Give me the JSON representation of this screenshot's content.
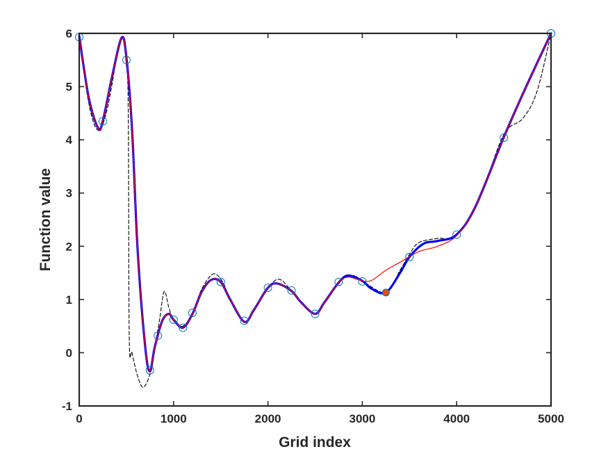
{
  "chart_data": {
    "type": "line",
    "title": "",
    "xlabel": "Grid index",
    "ylabel": "Function value",
    "xlim": [
      0,
      5000
    ],
    "ylim": [
      -1,
      6
    ],
    "xticks": [
      0,
      1000,
      2000,
      3000,
      4000,
      5000
    ],
    "yticks": [
      -1,
      0,
      1,
      2,
      3,
      4,
      5,
      6
    ],
    "xtick_labels": [
      "0",
      "1000",
      "2000",
      "3000",
      "4000",
      "5000"
    ],
    "ytick_labels": [
      "-1",
      "0",
      "1",
      "2",
      "3",
      "4",
      "5",
      "6"
    ],
    "grid": false,
    "legend": "none",
    "series": [
      {
        "style": "solid-red-thin",
        "color": "#ff0000",
        "x": [
          0,
          100,
          200,
          250,
          350,
          450,
          500,
          560,
          620,
          700,
          750,
          800,
          880,
          950,
          1000,
          1100,
          1200,
          1300,
          1400,
          1500,
          1600,
          1750,
          1850,
          2000,
          2100,
          2250,
          2350,
          2500,
          2600,
          2750,
          2850,
          3000,
          3100,
          3250,
          3400,
          3600,
          3800,
          4000,
          4200,
          4500,
          4750,
          5000
        ],
        "y": [
          5.95,
          4.8,
          4.22,
          4.35,
          5.2,
          5.92,
          5.55,
          4.2,
          1.9,
          0.1,
          -0.35,
          0.1,
          0.6,
          0.73,
          0.62,
          0.47,
          0.73,
          1.15,
          1.37,
          1.33,
          1.0,
          0.58,
          0.8,
          1.22,
          1.3,
          1.16,
          0.95,
          0.73,
          0.95,
          1.32,
          1.42,
          1.35,
          1.36,
          1.55,
          1.7,
          1.9,
          2.0,
          2.2,
          2.75,
          4.05,
          5.05,
          6.0
        ]
      },
      {
        "style": "solid-blue-thick",
        "color": "#0000ff",
        "x": [
          0,
          100,
          200,
          250,
          350,
          450,
          500,
          560,
          620,
          700,
          750,
          800,
          880,
          950,
          1000,
          1100,
          1200,
          1300,
          1400,
          1500,
          1600,
          1750,
          1850,
          2000,
          2100,
          2250,
          2350,
          2500,
          2600,
          2750,
          2850,
          3000,
          3100,
          3250,
          3400,
          3500,
          3650,
          3800,
          4000,
          4200,
          4500,
          4750,
          5000
        ],
        "y": [
          5.95,
          4.8,
          4.22,
          4.35,
          5.2,
          5.92,
          5.55,
          4.2,
          1.9,
          0.1,
          -0.35,
          0.1,
          0.6,
          0.73,
          0.62,
          0.47,
          0.73,
          1.15,
          1.37,
          1.33,
          1.0,
          0.58,
          0.8,
          1.22,
          1.3,
          1.16,
          0.95,
          0.73,
          0.95,
          1.32,
          1.45,
          1.35,
          1.2,
          1.13,
          1.5,
          1.8,
          2.05,
          2.1,
          2.22,
          2.75,
          4.05,
          5.05,
          6.0
        ]
      },
      {
        "style": "dashed-black",
        "color": "#000000",
        "x": [
          0,
          100,
          200,
          300,
          440,
          500,
          520,
          530,
          560,
          620,
          680,
          750,
          800,
          850,
          900,
          950,
          1000,
          1100,
          1200,
          1300,
          1420,
          1520,
          1600,
          1750,
          1850,
          2000,
          2120,
          2250,
          2350,
          2500,
          2620,
          2750,
          2900,
          3000,
          3250,
          3400,
          3500,
          3600,
          3800,
          4000,
          4250,
          4500,
          4700,
          4850,
          5000
        ],
        "y": [
          5.95,
          4.7,
          4.18,
          4.6,
          5.9,
          5.4,
          4.5,
          0.3,
          0.0,
          -0.45,
          -0.65,
          -0.4,
          0.1,
          0.6,
          1.15,
          0.85,
          0.6,
          0.5,
          0.75,
          1.2,
          1.48,
          1.33,
          1.0,
          0.58,
          0.8,
          1.22,
          1.38,
          1.16,
          0.95,
          0.73,
          0.98,
          1.32,
          1.45,
          1.35,
          1.13,
          1.55,
          1.85,
          2.07,
          2.15,
          2.2,
          2.95,
          4.1,
          4.4,
          4.9,
          6.0
        ]
      }
    ],
    "markers": {
      "style": "open-circle",
      "color": "#0072bd",
      "x": [
        0,
        250,
        500,
        750,
        833,
        1000,
        1100,
        1200,
        1500,
        1750,
        2000,
        2250,
        2500,
        2750,
        3000,
        3500,
        4000,
        4500,
        5000
      ],
      "y": [
        5.93,
        4.35,
        5.5,
        -0.33,
        0.32,
        0.62,
        0.47,
        0.75,
        1.33,
        0.6,
        1.22,
        1.17,
        0.73,
        1.33,
        1.34,
        1.8,
        2.22,
        4.04,
        6.0
      ]
    },
    "highlight_point": {
      "x": 3250,
      "y": 1.13,
      "fill": "#d95319",
      "edge": "#0072bd"
    }
  }
}
